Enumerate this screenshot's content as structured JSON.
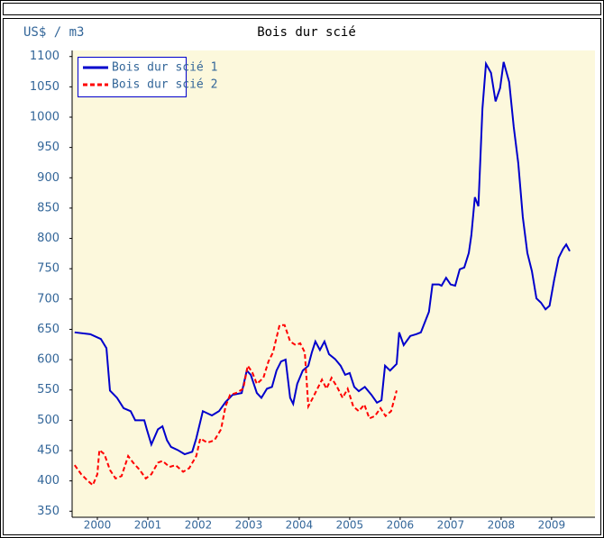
{
  "chart_data": {
    "type": "line",
    "title": "Bois dur scié",
    "y_label": "US$ / m3",
    "xlim": [
      2000,
      2010.36
    ],
    "ylim": [
      340,
      1110
    ],
    "xticks": [
      {
        "value": 2000.5,
        "label": "2000"
      },
      {
        "value": 2001.5,
        "label": "2001"
      },
      {
        "value": 2002.5,
        "label": "2002"
      },
      {
        "value": 2003.5,
        "label": "2003"
      },
      {
        "value": 2004.5,
        "label": "2004"
      },
      {
        "value": 2005.5,
        "label": "2005"
      },
      {
        "value": 2006.5,
        "label": "2006"
      },
      {
        "value": 2007.5,
        "label": "2007"
      },
      {
        "value": 2008.5,
        "label": "2008"
      },
      {
        "value": 2009.5,
        "label": "2009"
      }
    ],
    "yticks": [
      350,
      400,
      450,
      500,
      550,
      600,
      650,
      700,
      750,
      800,
      850,
      900,
      950,
      1000,
      1050,
      1100
    ],
    "legend": "upper left",
    "series": [
      {
        "name": "Bois dur scié 1",
        "color": "#0000cc",
        "dash": false,
        "x": [
          2000.05,
          2000.36,
          2000.57,
          2000.68,
          2000.75,
          2000.89,
          2001.02,
          2001.16,
          2001.25,
          2001.43,
          2001.48,
          2001.57,
          2001.7,
          2001.79,
          2001.88,
          2001.96,
          2002.09,
          2002.23,
          2002.38,
          2002.46,
          2002.59,
          2002.77,
          2002.91,
          2003.04,
          2003.18,
          2003.36,
          2003.46,
          2003.54,
          2003.66,
          2003.75,
          2003.86,
          2003.96,
          2004.05,
          2004.14,
          2004.23,
          2004.32,
          2004.38,
          2004.46,
          2004.57,
          2004.68,
          2004.75,
          2004.82,
          2004.91,
          2005.0,
          2005.09,
          2005.21,
          2005.32,
          2005.41,
          2005.5,
          2005.59,
          2005.68,
          2005.8,
          2005.93,
          2006.04,
          2006.13,
          2006.2,
          2006.3,
          2006.43,
          2006.48,
          2006.57,
          2006.7,
          2006.82,
          2006.91,
          2007.0,
          2007.07,
          2007.14,
          2007.27,
          2007.32,
          2007.41,
          2007.5,
          2007.59,
          2007.68,
          2007.77,
          2007.86,
          2007.91,
          2007.98,
          2008.05,
          2008.13,
          2008.2,
          2008.3,
          2008.39,
          2008.48,
          2008.55,
          2008.66,
          2008.75,
          2008.84,
          2008.93,
          2009.02,
          2009.11,
          2009.2,
          2009.29,
          2009.38,
          2009.46,
          2009.55,
          2009.64,
          2009.73,
          2009.79,
          2009.86
        ],
        "values": [
          645,
          642,
          634,
          619,
          549,
          537,
          520,
          515,
          500,
          500,
          485,
          460,
          485,
          490,
          467,
          456,
          451,
          444,
          448,
          470,
          515,
          508,
          515,
          530,
          542,
          545,
          582,
          575,
          545,
          537,
          552,
          555,
          582,
          597,
          600,
          537,
          527,
          560,
          582,
          590,
          612,
          630,
          616,
          630,
          609,
          601,
          590,
          575,
          578,
          555,
          548,
          555,
          542,
          529,
          533,
          590,
          582,
          593,
          645,
          624,
          639,
          642,
          645,
          664,
          679,
          724,
          724,
          722,
          735,
          724,
          722,
          749,
          752,
          776,
          805,
          868,
          853,
          1014,
          1088,
          1073,
          1026,
          1048,
          1091,
          1058,
          984,
          924,
          835,
          776,
          746,
          701,
          694,
          683,
          689,
          731,
          768,
          783,
          790,
          779
        ]
      },
      {
        "name": "Bois dur scié 2",
        "color": "#ff0000",
        "dash": true,
        "x": [
          2000.05,
          2000.18,
          2000.3,
          2000.41,
          2000.5,
          2000.54,
          2000.64,
          2000.75,
          2000.86,
          2000.98,
          2001.11,
          2001.21,
          2001.34,
          2001.46,
          2001.57,
          2001.7,
          2001.79,
          2001.93,
          2002.05,
          2002.2,
          2002.32,
          2002.46,
          2002.54,
          2002.68,
          2002.82,
          2002.95,
          2003.04,
          2003.13,
          2003.25,
          2003.39,
          2003.48,
          2003.57,
          2003.66,
          2003.79,
          2003.89,
          2003.98,
          2004.11,
          2004.21,
          2004.32,
          2004.43,
          2004.52,
          2004.61,
          2004.68,
          2004.77,
          2004.86,
          2004.95,
          2005.04,
          2005.14,
          2005.25,
          2005.36,
          2005.46,
          2005.57,
          2005.68,
          2005.79,
          2005.89,
          2006.0,
          2006.11,
          2006.21,
          2006.32,
          2006.43
        ],
        "values": [
          426,
          411,
          401,
          393,
          411,
          451,
          444,
          418,
          404,
          408,
          441,
          430,
          418,
          404,
          411,
          430,
          433,
          423,
          426,
          415,
          421,
          441,
          470,
          463,
          467,
          485,
          523,
          542,
          545,
          552,
          590,
          579,
          560,
          570,
          597,
          612,
          657,
          657,
          630,
          624,
          627,
          612,
          523,
          537,
          552,
          567,
          552,
          570,
          555,
          537,
          552,
          523,
          515,
          526,
          503,
          507,
          520,
          507,
          515,
          549
        ]
      }
    ]
  }
}
